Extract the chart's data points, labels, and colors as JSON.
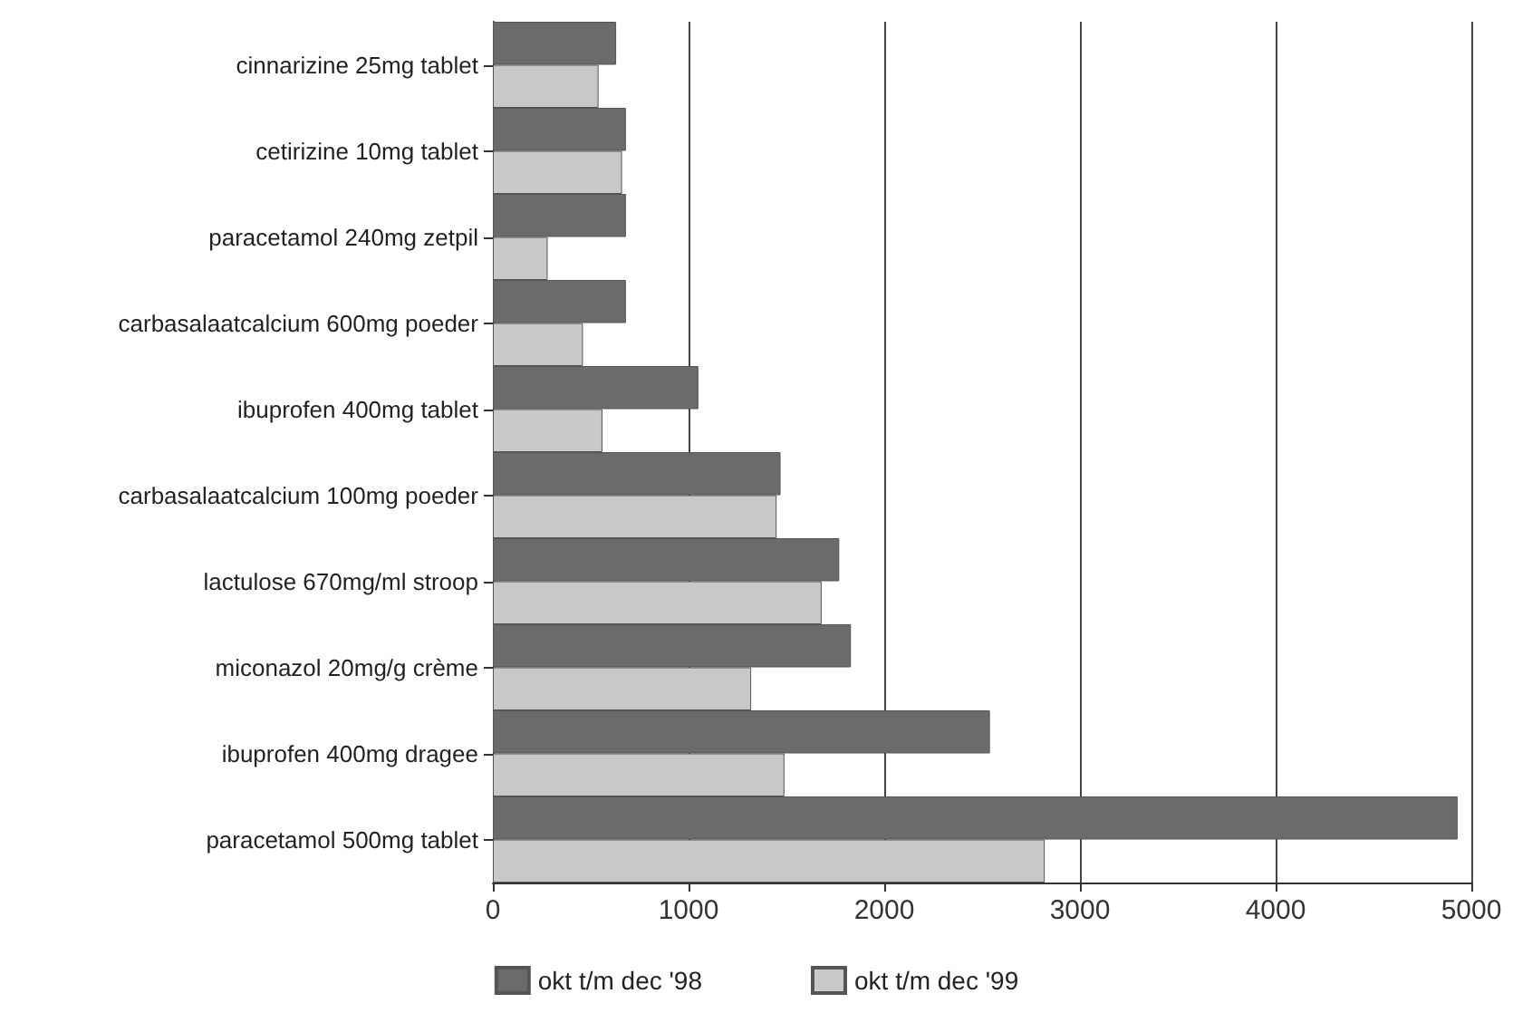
{
  "chart_data": {
    "type": "bar",
    "orientation": "horizontal",
    "categories": [
      "cinnarizine 25mg tablet",
      "cetirizine 10mg tablet",
      "paracetamol 240mg zetpil",
      "carbasalaatcalcium 600mg poeder",
      "ibuprofen 400mg tablet",
      "carbasalaatcalcium 100mg poeder",
      "lactulose 670mg/ml stroop",
      "miconazol 20mg/g crème",
      "ibuprofen 400mg dragee",
      "paracetamol 500mg tablet"
    ],
    "series": [
      {
        "name": "okt t/m dec '98",
        "color": "#6b6b6b",
        "values": [
          630,
          680,
          680,
          680,
          1050,
          1470,
          1770,
          1830,
          2540,
          4930
        ]
      },
      {
        "name": "okt t/m dec '99",
        "color": "#c8c8c8",
        "values": [
          540,
          660,
          280,
          460,
          560,
          1450,
          1680,
          1320,
          1490,
          2820
        ]
      }
    ],
    "xlim": [
      0,
      5000
    ],
    "xticks": [
      0,
      1000,
      2000,
      3000,
      4000,
      5000
    ],
    "grid": "x",
    "legend": "bottom"
  }
}
